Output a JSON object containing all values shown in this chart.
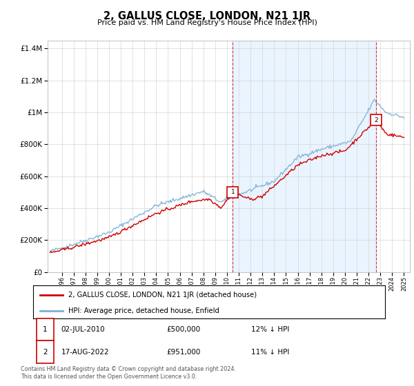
{
  "title": "2, GALLUS CLOSE, LONDON, N21 1JR",
  "subtitle": "Price paid vs. HM Land Registry's House Price Index (HPI)",
  "legend_line1": "2, GALLUS CLOSE, LONDON, N21 1JR (detached house)",
  "legend_line2": "HPI: Average price, detached house, Enfield",
  "sale1_date": "02-JUL-2010",
  "sale1_price": "£500,000",
  "sale1_hpi": "12% ↓ HPI",
  "sale2_date": "17-AUG-2022",
  "sale2_price": "£951,000",
  "sale2_hpi": "11% ↓ HPI",
  "footnote1": "Contains HM Land Registry data © Crown copyright and database right 2024.",
  "footnote2": "This data is licensed under the Open Government Licence v3.0.",
  "red_color": "#cc0000",
  "blue_color": "#7ab0d4",
  "bg_shaded": "#ddeeff",
  "sale1_x": 2010.5,
  "sale2_x": 2022.65,
  "sale1_y": 500000,
  "sale2_y": 951000,
  "ylim": [
    0,
    1450000
  ],
  "xlim": [
    1994.8,
    2025.5
  ],
  "yticks": [
    0,
    200000,
    400000,
    600000,
    800000,
    1000000,
    1200000,
    1400000
  ],
  "xtick_start": 1996,
  "xtick_end": 2025
}
